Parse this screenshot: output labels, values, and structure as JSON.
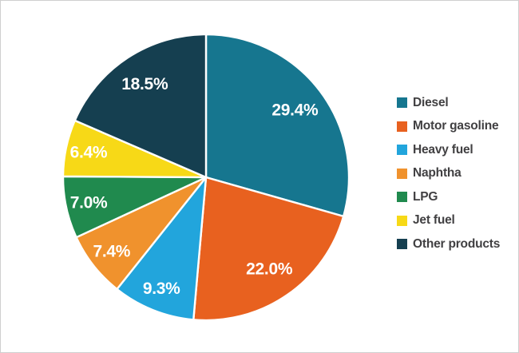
{
  "chart_data": {
    "type": "pie",
    "categories": [
      "Diesel",
      "Motor gasoline",
      "Heavy fuel",
      "Naphtha",
      "LPG",
      "Jet fuel",
      "Other products"
    ],
    "values": [
      29.4,
      22.0,
      9.3,
      7.4,
      7.0,
      6.4,
      18.5
    ],
    "slice_labels": [
      "29.4%",
      "22.0%",
      "9.3%",
      "7.4%",
      "7.0%",
      "6.4%",
      "18.5%"
    ],
    "colors": [
      "#16768f",
      "#e8611f",
      "#22a5dc",
      "#f0922d",
      "#208a4e",
      "#f7d917",
      "#153f50"
    ],
    "start_angle_deg": 0,
    "direction": "clockwise",
    "legend_position": "right",
    "slice_separator_color": "#ffffff",
    "label_text_color": "#ffffff",
    "legend_text_color": "#414042",
    "title": ""
  }
}
